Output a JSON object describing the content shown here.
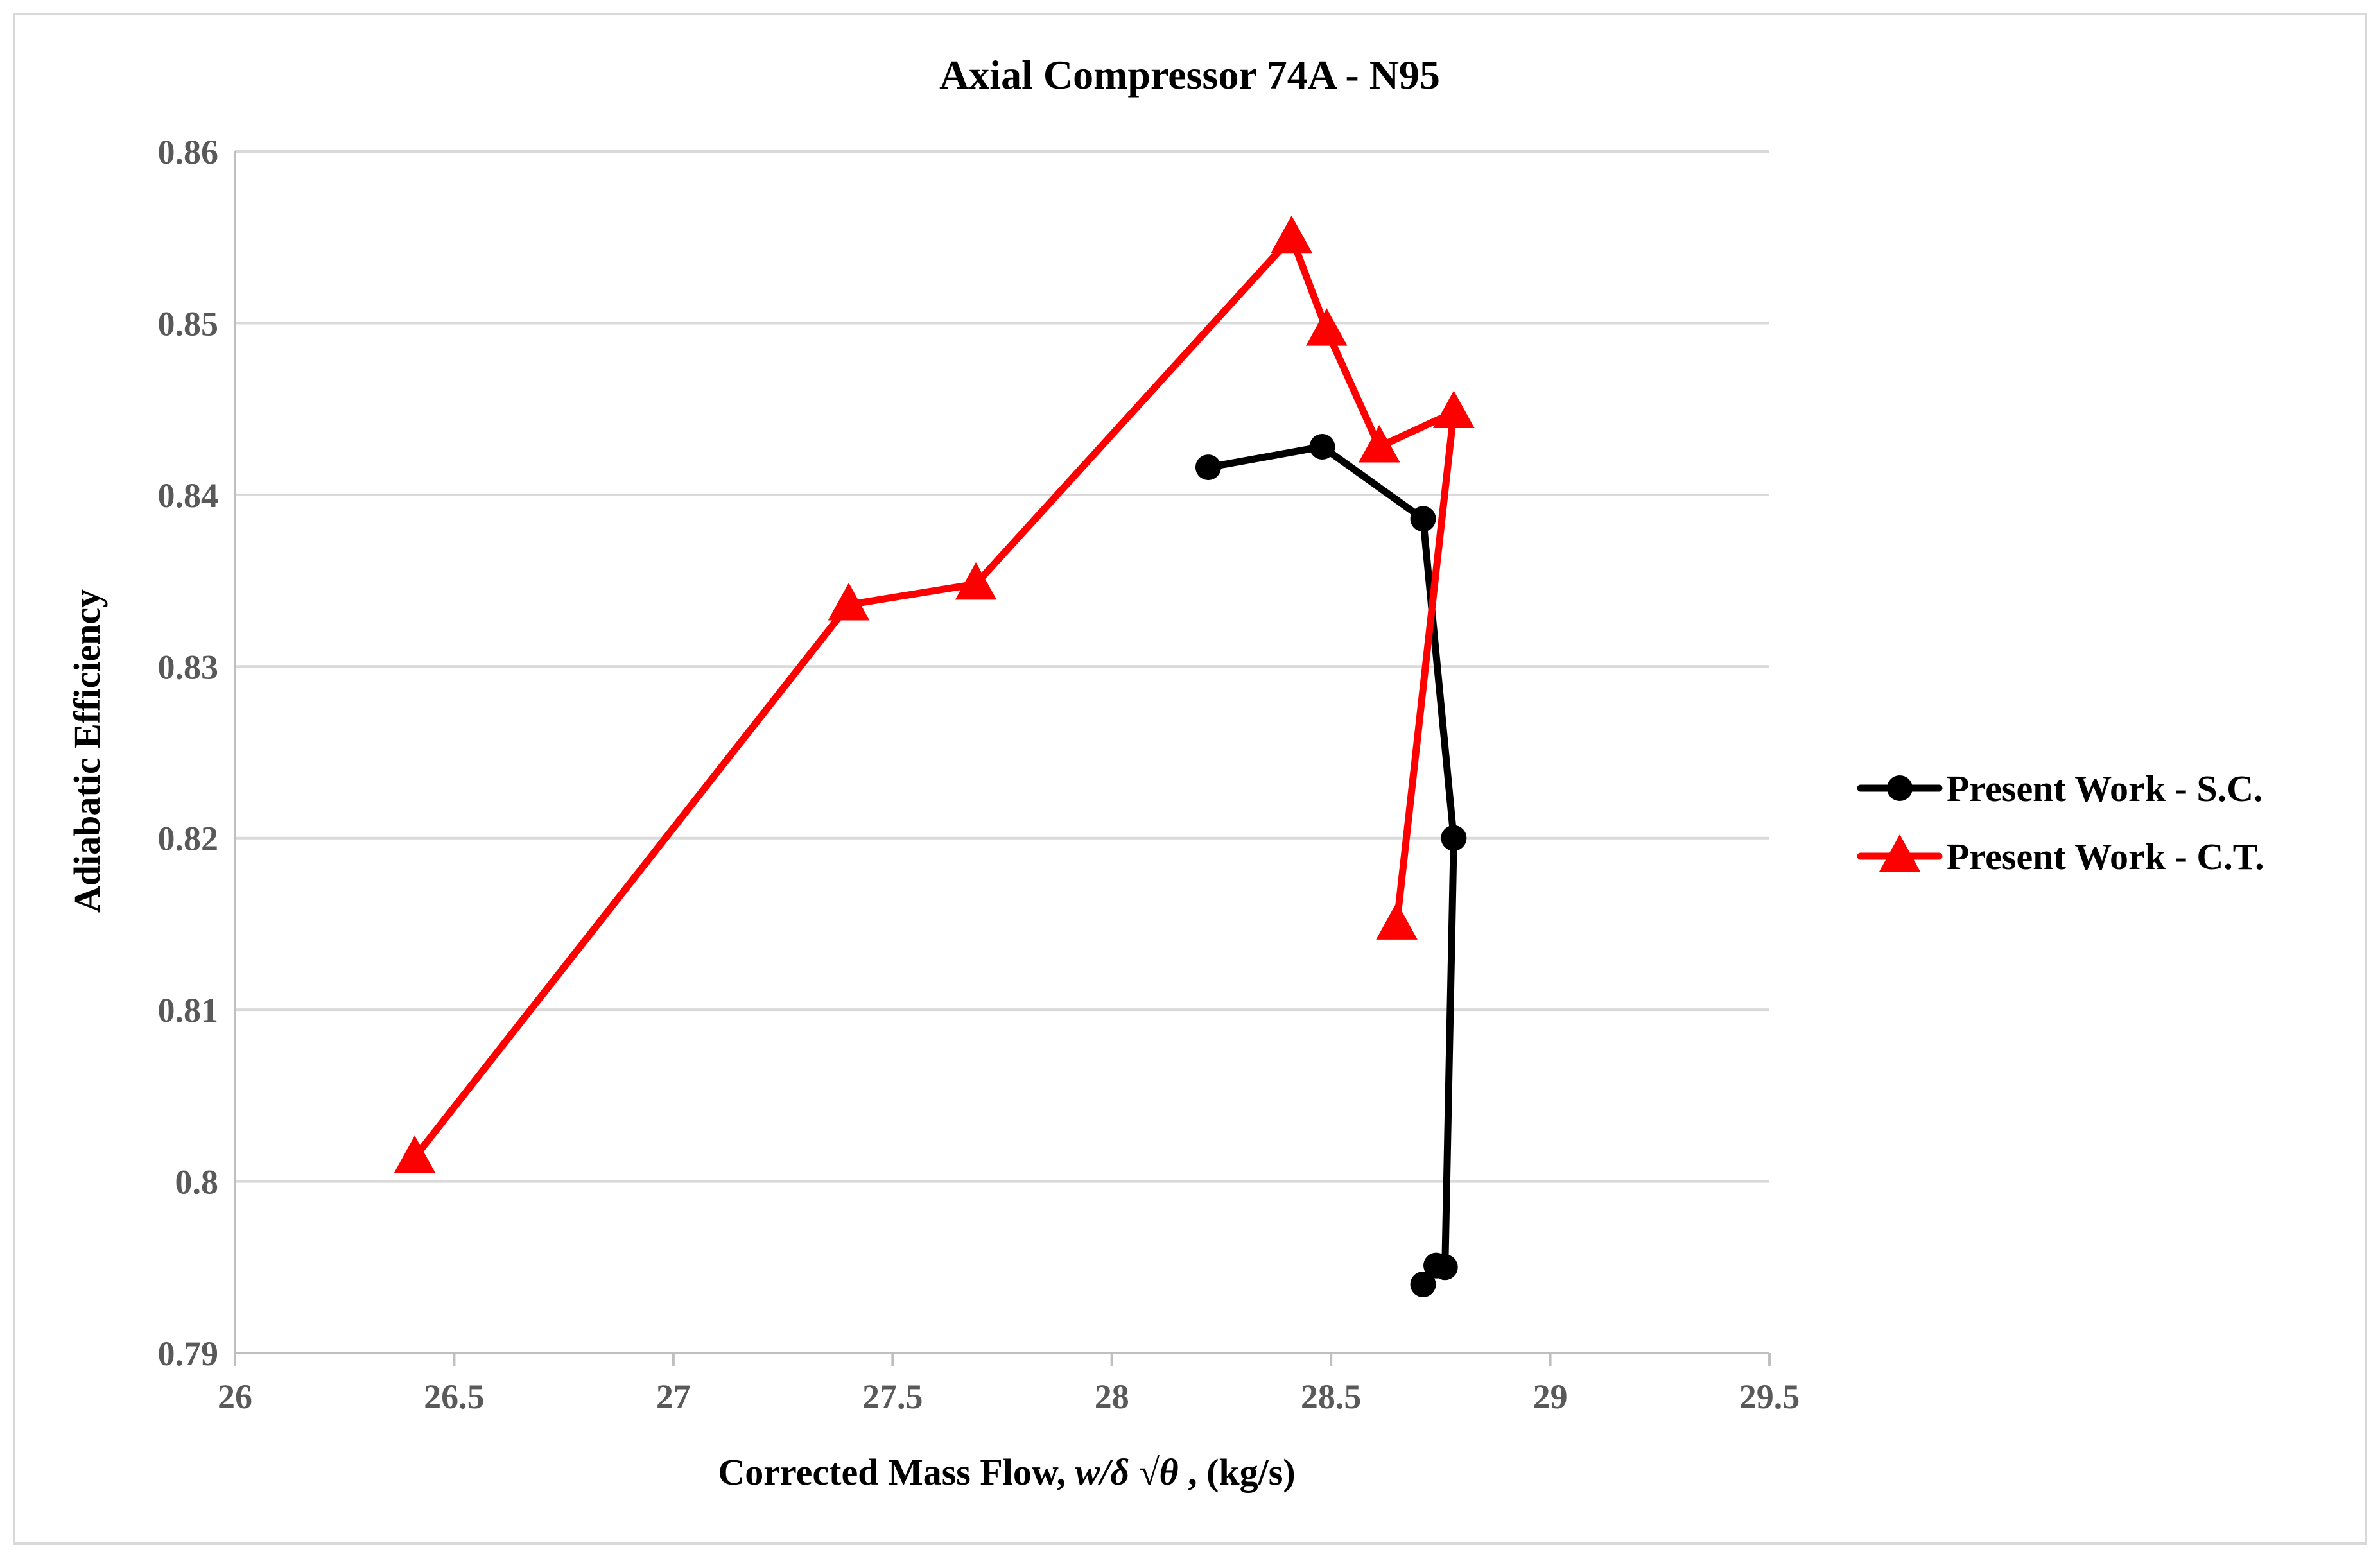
{
  "chart_data": {
    "type": "line",
    "title": "Axial Compressor 74A - N95",
    "xlabel_parts": [
      "Corrected Mass Flow, ",
      "w/δ √θ",
      " , (kg/s)"
    ],
    "ylabel": "Adiabatic Efficiency",
    "xlim": [
      26,
      29.5
    ],
    "ylim": [
      0.79,
      0.86
    ],
    "x_ticks": [
      "26",
      "26.5",
      "27",
      "27.5",
      "28",
      "28.5",
      "29",
      "29.5"
    ],
    "y_ticks": [
      "0.79",
      "0.8",
      "0.81",
      "0.82",
      "0.83",
      "0.84",
      "0.85",
      "0.86"
    ],
    "grid": "horizontal",
    "legend_position": "right",
    "series": [
      {
        "name": "Present Work - S.C.",
        "color": "#000000",
        "marker": "circle",
        "points": [
          {
            "x": 28.22,
            "y": 0.8416
          },
          {
            "x": 28.48,
            "y": 0.8428
          },
          {
            "x": 28.71,
            "y": 0.8386
          },
          {
            "x": 28.78,
            "y": 0.82
          },
          {
            "x": 28.76,
            "y": 0.795
          },
          {
            "x": 28.74,
            "y": 0.7951
          },
          {
            "x": 28.71,
            "y": 0.794
          }
        ]
      },
      {
        "name": "Present Work - C.T.",
        "color": "#ff0000",
        "marker": "triangle",
        "points": [
          {
            "x": 26.41,
            "y": 0.8014
          },
          {
            "x": 27.4,
            "y": 0.8336
          },
          {
            "x": 27.69,
            "y": 0.8348
          },
          {
            "x": 28.41,
            "y": 0.855
          },
          {
            "x": 28.49,
            "y": 0.8496
          },
          {
            "x": 28.61,
            "y": 0.8428
          },
          {
            "x": 28.78,
            "y": 0.8448
          },
          {
            "x": 28.65,
            "y": 0.815
          }
        ]
      }
    ]
  }
}
